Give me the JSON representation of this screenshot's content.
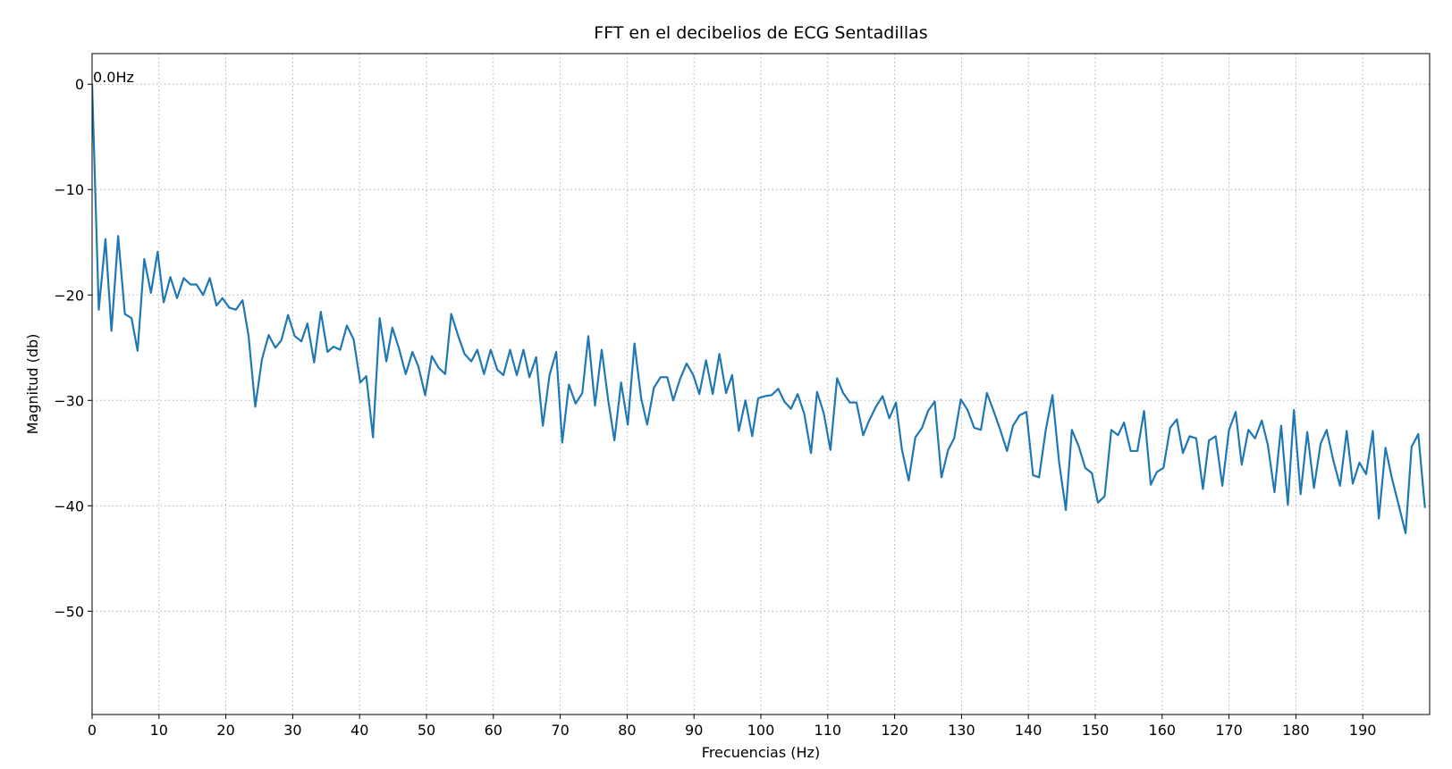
{
  "chart_data": {
    "type": "line",
    "title": "FFT en el decibelios de ECG Sentadillas",
    "xlabel": "Frecuencias (Hz)",
    "ylabel": "Magnitud (db)",
    "xlim": [
      0,
      200
    ],
    "ylim": [
      -59.8,
      2.9
    ],
    "xticks": [
      0,
      10,
      20,
      30,
      40,
      50,
      60,
      70,
      80,
      90,
      100,
      110,
      120,
      130,
      140,
      150,
      160,
      170,
      180,
      190
    ],
    "yticks": [
      {
        "value": 0,
        "label": "0"
      },
      {
        "value": -10,
        "label": "−10"
      },
      {
        "value": -20,
        "label": "−20"
      },
      {
        "value": -30,
        "label": "−30"
      },
      {
        "value": -40,
        "label": "−40"
      },
      {
        "value": -50,
        "label": "−50"
      }
    ],
    "grid": true,
    "annotations": [
      {
        "text": "0.0Hz",
        "x": 0,
        "y": 0
      }
    ],
    "x": [
      0,
      1.0,
      2.0,
      2.9,
      3.9,
      4.9,
      5.9,
      6.8,
      7.8,
      8.8,
      9.8,
      10.7,
      11.7,
      12.7,
      13.7,
      14.7,
      15.6,
      16.6,
      17.6,
      18.6,
      19.5,
      20.5,
      21.5,
      22.5,
      23.4,
      24.4,
      25.4,
      26.4,
      27.4,
      28.3,
      29.3,
      30.3,
      31.3,
      32.2,
      33.2,
      34.2,
      35.2,
      36.1,
      37.1,
      38.1,
      39.1,
      40.1,
      41.0,
      42.0,
      43.0,
      44.0,
      44.9,
      45.9,
      46.9,
      47.9,
      48.8,
      49.8,
      50.8,
      51.8,
      52.8,
      53.7,
      54.7,
      55.7,
      56.7,
      57.6,
      58.6,
      59.6,
      60.6,
      61.5,
      62.5,
      63.5,
      64.5,
      65.4,
      66.4,
      67.4,
      68.4,
      69.4,
      70.3,
      71.3,
      72.3,
      73.3,
      74.2,
      75.2,
      76.2,
      77.2,
      78.1,
      79.1,
      80.1,
      81.1,
      82.1,
      83.0,
      84.0,
      85.0,
      86.0,
      86.9,
      87.9,
      88.9,
      89.9,
      90.8,
      91.8,
      92.8,
      93.8,
      94.8,
      95.7,
      96.7,
      97.7,
      98.7,
      99.6,
      100.6,
      101.6,
      102.6,
      103.5,
      104.5,
      105.5,
      106.5,
      107.5,
      108.4,
      109.4,
      110.4,
      111.4,
      112.3,
      113.3,
      114.3,
      115.3,
      116.2,
      117.2,
      118.2,
      119.2,
      120.2,
      121.1,
      122.1,
      123.1,
      124.1,
      125.0,
      126.0,
      127.0,
      128.0,
      128.9,
      129.9,
      130.9,
      131.9,
      132.9,
      133.8,
      134.8,
      135.8,
      136.8,
      137.7,
      138.7,
      139.7,
      140.7,
      141.6,
      142.6,
      143.6,
      144.6,
      145.6,
      146.5,
      147.5,
      148.5,
      149.5,
      150.4,
      151.4,
      152.4,
      153.4,
      154.3,
      155.3,
      156.3,
      157.3,
      158.3,
      159.2,
      160.2,
      161.2,
      162.2,
      163.1,
      164.1,
      165.1,
      166.1,
      167.0,
      168.0,
      169.0,
      170.0,
      171.0,
      171.9,
      172.9,
      173.9,
      174.9,
      175.8,
      176.8,
      177.8,
      178.8,
      179.7,
      180.7,
      181.7,
      182.7,
      183.7,
      184.6,
      185.6,
      186.6,
      187.6,
      188.5,
      189.5,
      190.5,
      191.5,
      192.4,
      193.4,
      194.4,
      195.4,
      196.4,
      197.3,
      198.3,
      199.3
    ],
    "series": [
      {
        "color": "#1f77b4",
        "values": [
          0,
          -21.4,
          -14.7,
          -23.4,
          -14.4,
          -21.8,
          -22.2,
          -25.3,
          -16.6,
          -19.8,
          -15.9,
          -20.7,
          -18.3,
          -20.3,
          -18.4,
          -19.0,
          -19.0,
          -20.0,
          -18.4,
          -21.0,
          -20.3,
          -21.2,
          -21.4,
          -20.5,
          -23.9,
          -30.6,
          -26.1,
          -23.8,
          -25.0,
          -24.3,
          -21.9,
          -23.9,
          -24.4,
          -22.7,
          -26.4,
          -21.6,
          -25.4,
          -24.9,
          -25.2,
          -22.9,
          -24.2,
          -28.3,
          -27.7,
          -33.5,
          -22.2,
          -26.3,
          -23.1,
          -25.1,
          -27.5,
          -25.4,
          -26.8,
          -29.5,
          -25.8,
          -26.9,
          -27.5,
          -21.8,
          -23.8,
          -25.6,
          -26.3,
          -25.2,
          -27.5,
          -25.2,
          -27.1,
          -27.6,
          -25.2,
          -27.6,
          -25.2,
          -27.8,
          -25.9,
          -32.4,
          -27.6,
          -25.4,
          -34.0,
          -28.5,
          -30.3,
          -29.3,
          -23.9,
          -30.5,
          -25.2,
          -30.1,
          -33.8,
          -28.3,
          -32.3,
          -24.6,
          -29.8,
          -32.3,
          -28.8,
          -27.8,
          -27.8,
          -30.0,
          -28.0,
          -26.5,
          -27.6,
          -29.4,
          -26.2,
          -29.4,
          -25.6,
          -29.3,
          -27.6,
          -32.9,
          -30.0,
          -33.4,
          -29.8,
          -29.6,
          -29.5,
          -28.9,
          -30.1,
          -30.8,
          -29.4,
          -31.3,
          -35.0,
          -29.2,
          -31.2,
          -34.7,
          -27.9,
          -29.3,
          -30.2,
          -30.2,
          -33.3,
          -31.9,
          -30.6,
          -29.6,
          -31.7,
          -30.2,
          -34.7,
          -37.6,
          -33.5,
          -32.6,
          -31.0,
          -30.1,
          -37.3,
          -34.7,
          -33.6,
          -29.9,
          -30.9,
          -32.6,
          -32.8,
          -29.3,
          -31.0,
          -32.8,
          -34.8,
          -32.4,
          -31.4,
          -31.1,
          -37.1,
          -37.3,
          -32.8,
          -29.5,
          -35.9,
          -40.4,
          -32.8,
          -34.3,
          -36.4,
          -36.9,
          -39.7,
          -39.1,
          -32.8,
          -33.3,
          -32.1,
          -34.8,
          -34.8,
          -31.0,
          -38.0,
          -36.8,
          -36.4,
          -32.6,
          -31.8,
          -35.0,
          -33.4,
          -33.6,
          -38.4,
          -33.8,
          -33.4,
          -38.1,
          -32.8,
          -31.1,
          -36.1,
          -32.8,
          -33.6,
          -31.9,
          -34.2,
          -38.7,
          -32.4,
          -39.9,
          -30.9,
          -38.9,
          -33.0,
          -38.3,
          -34.1,
          -32.8,
          -35.7,
          -38.1,
          -32.9,
          -37.9,
          -35.9,
          -37.0,
          -32.9,
          -41.2,
          -34.5,
          -37.5,
          -40.0,
          -42.6,
          -34.4,
          -33.2,
          -40.2
        ]
      }
    ]
  }
}
